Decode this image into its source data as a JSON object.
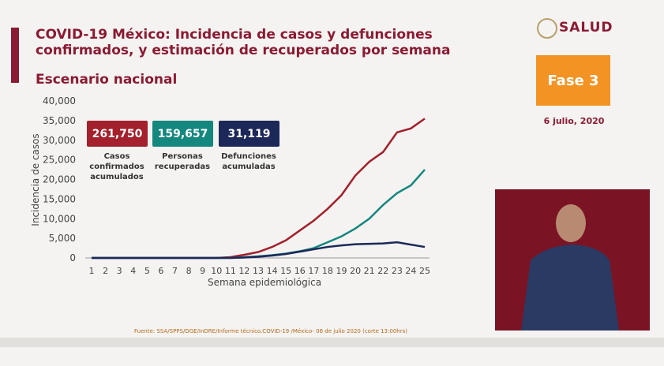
{
  "header": {
    "logo": "SALUD",
    "phase": "Fase 3",
    "date": "6 julio, 2020"
  },
  "source": "Fuente: SSA/SPPS/DGE/InDRE/Informe técnico.COVID-19 /México- 06 de julio 2020 (corte 13:00hrs)",
  "chart_data": {
    "type": "line",
    "title": "COVID-19 México: Incidencia de casos y defunciones confirmados, y estimación de recuperados por semana",
    "subtitle": "Escenario nacional",
    "x_label": "Semana epidemiológica",
    "y_label": "Incidencia de casos",
    "categories": [
      "1",
      "2",
      "3",
      "4",
      "5",
      "6",
      "7",
      "8",
      "9",
      "10",
      "11",
      "12",
      "13",
      "14",
      "15",
      "16",
      "17",
      "18",
      "19",
      "20",
      "21",
      "22",
      "23",
      "24",
      "25"
    ],
    "ylim": [
      0,
      40000
    ],
    "yticks": [
      0,
      {
        "value": 5000,
        "label": "5,000"
      },
      {
        "value": 10000,
        "label": "10,000"
      },
      {
        "value": 15000,
        "label": "15,000"
      },
      {
        "value": 20000,
        "label": "20,000"
      },
      {
        "value": 25000,
        "label": "25,000"
      },
      {
        "value": 30000,
        "label": "30,000"
      },
      {
        "value": 35000,
        "label": "35,000"
      },
      {
        "value": 40000,
        "label": "40,000"
      }
    ],
    "grid": false,
    "series": [
      {
        "name": "Casos confirmados acumulados",
        "total": "261,750",
        "color": "#a3202c",
        "values": [
          0,
          0,
          0,
          0,
          0,
          0,
          0,
          0,
          0,
          0,
          200,
          800,
          1500,
          2800,
          4500,
          7000,
          9500,
          12500,
          16000,
          21000,
          24500,
          27000,
          32000,
          33000,
          35500
        ]
      },
      {
        "name": "Personas recuperadas",
        "total": "159,657",
        "color": "#14877f",
        "values": [
          0,
          0,
          0,
          0,
          0,
          0,
          0,
          0,
          0,
          0,
          0,
          200,
          400,
          700,
          1100,
          1700,
          2500,
          4000,
          5500,
          7500,
          10000,
          13500,
          16500,
          18500,
          22500
        ]
      },
      {
        "name": "Defunciones acumuladas",
        "total": "31,119",
        "color": "#1c2858",
        "values": [
          0,
          0,
          0,
          0,
          0,
          0,
          0,
          0,
          0,
          0,
          0,
          100,
          300,
          600,
          1000,
          1600,
          2200,
          2800,
          3200,
          3500,
          3600,
          3700,
          4000,
          3400,
          2800
        ]
      }
    ]
  }
}
